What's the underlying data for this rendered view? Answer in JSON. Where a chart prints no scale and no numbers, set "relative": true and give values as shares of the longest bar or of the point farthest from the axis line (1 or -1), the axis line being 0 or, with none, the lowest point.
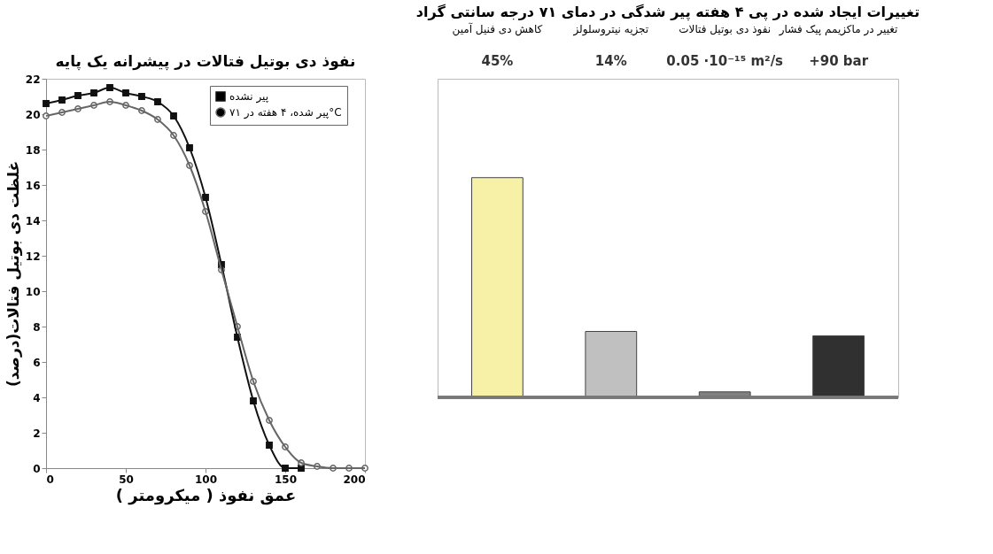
{
  "chart_data": [
    {
      "type": "line",
      "title": "نفوذ دی بوتیل فتالات در پیشرانه  یک پایه",
      "xlabel": "عمق نفوذ ( میکرومتر )",
      "ylabel": "غلظت دی بوتیل فتالات(درصد)",
      "xlim": [
        0,
        200
      ],
      "xticks": [
        0,
        50,
        100,
        150,
        200
      ],
      "ylim": [
        0,
        22
      ],
      "yticks": [
        0,
        2,
        4,
        6,
        8,
        10,
        12,
        14,
        16,
        18,
        20,
        22
      ],
      "legend": "top right",
      "series": [
        {
          "name": "پیر نشده",
          "color": "#111111",
          "marker": "square",
          "x": [
            0,
            10,
            20,
            30,
            40,
            50,
            60,
            70,
            80,
            90,
            100,
            110,
            120,
            130,
            140,
            150,
            160
          ],
          "values": [
            20.6,
            20.8,
            21.05,
            21.2,
            21.5,
            21.2,
            21.0,
            20.7,
            19.9,
            18.1,
            15.3,
            11.5,
            7.4,
            3.8,
            1.3,
            0,
            0
          ]
        },
        {
          "name": "پیر شده، ۴ هفته در ۷۱°C",
          "color": "#666666",
          "marker": "circle",
          "x": [
            0,
            10,
            20,
            30,
            40,
            50,
            60,
            70,
            80,
            90,
            100,
            110,
            120,
            130,
            140,
            150,
            160,
            170,
            180,
            190,
            200
          ],
          "values": [
            19.9,
            20.1,
            20.3,
            20.5,
            20.7,
            20.5,
            20.2,
            19.7,
            18.8,
            17.1,
            14.5,
            11.2,
            8.0,
            4.9,
            2.7,
            1.2,
            0.3,
            0.1,
            0,
            0,
            0
          ]
        }
      ]
    },
    {
      "type": "bar",
      "title": "تغییرات ایجاد شده در پی ۴ هفته پیر شدگی در دمای ۷۱ درجه سانتی گراد",
      "relative": true,
      "categories": [
        "کاهش دی فنیل آمین",
        "تجزیه نیتروسلولز",
        "نفوذ دی بوتیل فتالات",
        "تغییر در ماکزیمم پیک فشار"
      ],
      "values": [
        1,
        0.3,
        0.025,
        0.28
      ],
      "colors": [
        "#f7f1a8",
        "#c0c0c0",
        "#808080",
        "#303030"
      ],
      "annotations": [
        "45%",
        "14%",
        "0.05 ·10⁻¹⁵ m²/s",
        "+90 bar"
      ]
    }
  ]
}
